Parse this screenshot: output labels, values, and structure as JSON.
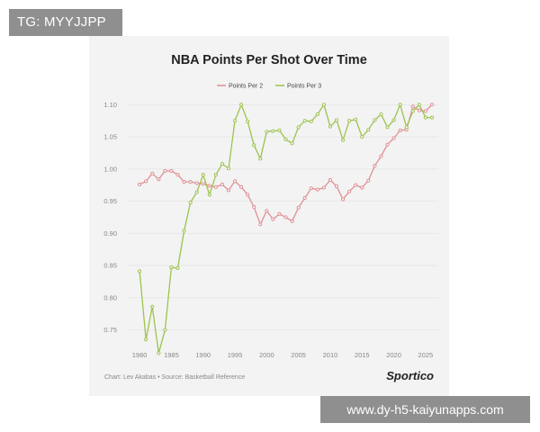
{
  "badge": {
    "text": "TG: MYYJJPP"
  },
  "watermark": {
    "text": "www.dy-h5-kaiyunapps.com"
  },
  "colors": {
    "card_bg": "#f3f3f3",
    "grid": "#e2e2e2",
    "text": "#222222",
    "muted": "#888888"
  },
  "chart_data": {
    "type": "line",
    "title": "NBA Points Per Shot Over Time",
    "xlabel": "",
    "ylabel": "",
    "xlim": [
      1978,
      2027
    ],
    "ylim": [
      0.72,
      1.12
    ],
    "x_ticks": [
      1980,
      1985,
      1990,
      1995,
      2000,
      2005,
      2010,
      2015,
      2020,
      2025
    ],
    "y_ticks": [
      0.75,
      0.8,
      0.85,
      0.9,
      0.95,
      1.0,
      1.05,
      1.1
    ],
    "y_tick_labels": [
      "0.75",
      "0.80",
      "0.85",
      "0.90",
      "0.95",
      "1.00",
      "1.05",
      "1.10"
    ],
    "grid": true,
    "legend": "top-center",
    "x": [
      1980,
      1981,
      1982,
      1983,
      1984,
      1985,
      1986,
      1987,
      1988,
      1989,
      1990,
      1991,
      1992,
      1993,
      1994,
      1995,
      1996,
      1997,
      1998,
      1999,
      2000,
      2001,
      2002,
      2003,
      2004,
      2005,
      2006,
      2007,
      2008,
      2009,
      2010,
      2011,
      2012,
      2013,
      2014,
      2015,
      2016,
      2017,
      2018,
      2019,
      2020,
      2021,
      2022,
      2023,
      2024,
      2025,
      2026
    ],
    "series": [
      {
        "name": "Points Per 2",
        "color": "#e08f94",
        "values": [
          0.976,
          0.981,
          0.993,
          0.984,
          0.997,
          0.997,
          0.991,
          0.98,
          0.98,
          0.978,
          0.977,
          0.974,
          0.972,
          0.976,
          0.967,
          0.981,
          0.972,
          0.96,
          0.941,
          0.914,
          0.935,
          0.922,
          0.93,
          0.925,
          0.919,
          0.94,
          0.955,
          0.97,
          0.968,
          0.971,
          0.983,
          0.973,
          0.953,
          0.965,
          0.975,
          0.971,
          0.982,
          1.005,
          1.02,
          1.038,
          1.048,
          1.06,
          1.061,
          1.097,
          1.091,
          1.09,
          1.1
        ]
      },
      {
        "name": "Points Per 3",
        "color": "#9cc34d",
        "values": [
          0.841,
          0.735,
          0.786,
          0.714,
          0.75,
          0.847,
          0.846,
          0.904,
          0.948,
          0.964,
          0.991,
          0.96,
          0.991,
          1.008,
          1.001,
          1.075,
          1.1,
          1.074,
          1.037,
          1.016,
          1.058,
          1.059,
          1.06,
          1.046,
          1.04,
          1.065,
          1.075,
          1.074,
          1.085,
          1.1,
          1.066,
          1.076,
          1.045,
          1.075,
          1.077,
          1.05,
          1.061,
          1.076,
          1.085,
          1.065,
          1.076,
          1.1,
          1.065,
          1.09,
          1.1,
          1.08,
          1.08
        ]
      }
    ],
    "source": "Chart: Lev Akabas • Source: Basketball Reference",
    "brand": "Sportico"
  }
}
